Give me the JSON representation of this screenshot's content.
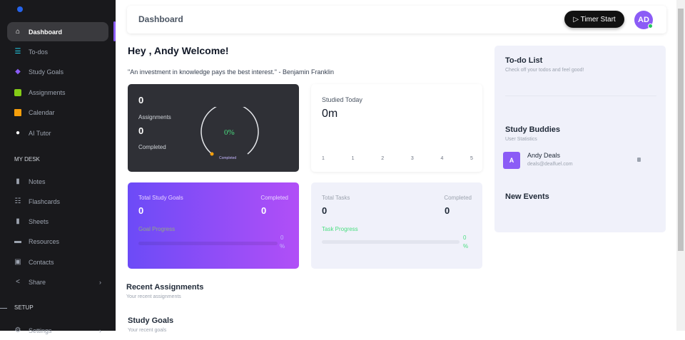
{
  "sidebar": {
    "items": [
      {
        "label": "Dashboard",
        "icon": "home-icon",
        "color": "#ffffff"
      },
      {
        "label": "To-dos",
        "icon": "list-icon",
        "color": "#22d3ee"
      },
      {
        "label": "Study Goals",
        "icon": "diamond-icon",
        "color": "#8b5cf6"
      },
      {
        "label": "Assignments",
        "icon": "cube-icon",
        "color": "#84cc16"
      },
      {
        "label": "Calendar",
        "icon": "calendar-icon",
        "color": "#f59e0b"
      },
      {
        "label": "AI Tutor",
        "icon": "chat-icon",
        "color": "#ffffff"
      }
    ],
    "section_mydesk": "MY DESK",
    "desk_items": [
      {
        "label": "Notes",
        "icon": "note-icon"
      },
      {
        "label": "Flashcards",
        "icon": "flashcards-icon"
      },
      {
        "label": "Sheets",
        "icon": "sheet-icon"
      },
      {
        "label": "Resources",
        "icon": "resources-icon"
      },
      {
        "label": "Contacts",
        "icon": "contacts-icon"
      },
      {
        "label": "Share",
        "icon": "share-icon"
      }
    ],
    "section_setup": "SETUP",
    "setup_items": [
      {
        "label": "Settings",
        "icon": "gear-icon"
      }
    ]
  },
  "header": {
    "title": "Dashboard",
    "timer_label": "▷ Timer Start",
    "avatar": "AD"
  },
  "welcome": "Hey , Andy Welcome!",
  "quote": "\"An investment in knowledge pays the best interest.\" - Benjamin Franklin",
  "assignments_card": {
    "assignments_count": "0",
    "assignments_label": "Assignments",
    "completed_count": "0",
    "completed_label": "Completed",
    "gauge_value": "0%",
    "gauge_label": "Completed",
    "gauge_percent": 0
  },
  "studied_card": {
    "title": "Studied Today",
    "value": "0m",
    "axis_labels": [
      "1",
      "1",
      "2",
      "3",
      "4",
      "5"
    ]
  },
  "goals_card": {
    "total_label": "Total Study Goals",
    "total": "0",
    "completed_label": "Completed",
    "completed": "0",
    "progress_label": "Goal Progress",
    "progress_value": "0",
    "progress_unit": "%",
    "progress_percent": 0
  },
  "tasks_card": {
    "total_label": "Total Tasks",
    "total": "0",
    "completed_label": "Completed",
    "completed": "0",
    "progress_label": "Task Progress",
    "progress_value": "0",
    "progress_unit": "%",
    "progress_percent": 0
  },
  "todo": {
    "title": "To-do List",
    "subtitle": "Check off your todos and feel good!"
  },
  "buddies": {
    "title": "Study Buddies",
    "subtitle": "User Statistics",
    "items": [
      {
        "initial": "A",
        "name": "Andy Deals",
        "email": "deals@dealfuel.com"
      }
    ]
  },
  "events": {
    "title": "New Events"
  },
  "recent": {
    "title": "Recent Assignments",
    "subtitle": "Your recent assignments"
  },
  "study_goals": {
    "title": "Study Goals",
    "subtitle": "Your recent goals"
  }
}
